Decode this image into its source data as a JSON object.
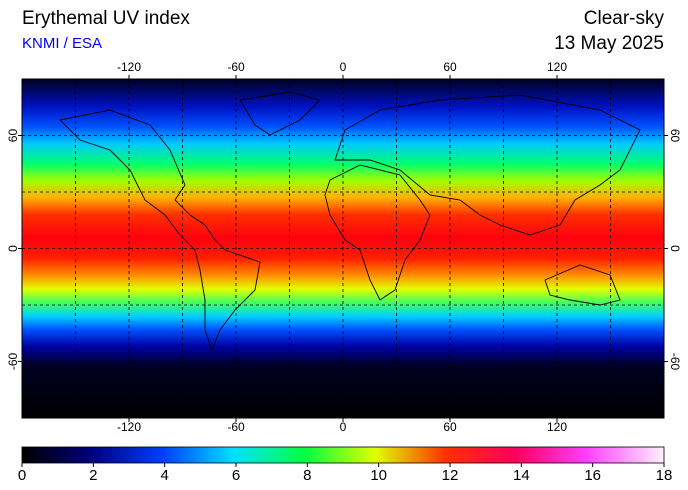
{
  "header": {
    "title": "Erythemal UV index",
    "subtitle": "KNMI / ESA",
    "condition": "Clear-sky",
    "date": "13 May 2025"
  },
  "map": {
    "lon_range": [
      -180,
      180
    ],
    "lat_range": [
      -90,
      90
    ],
    "lon_ticks": [
      -120,
      -60,
      0,
      60,
      120
    ],
    "lat_ticks": [
      60,
      0,
      -60
    ]
  },
  "colorbar": {
    "range": [
      0,
      18
    ],
    "ticks": [
      0,
      2,
      4,
      6,
      8,
      10,
      12,
      14,
      16,
      18
    ]
  }
}
